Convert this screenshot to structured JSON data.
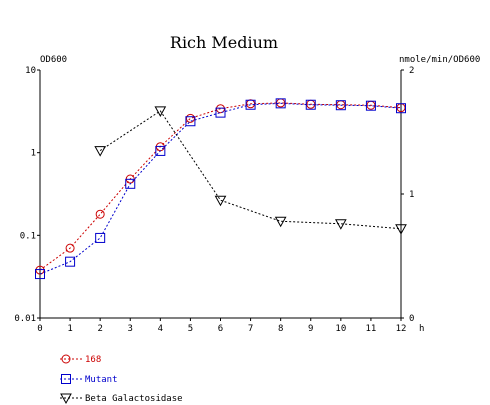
{
  "chart_data": {
    "type": "line",
    "title": "Rich Medium",
    "x": [
      0,
      1,
      2,
      3,
      4,
      5,
      6,
      7,
      8,
      9,
      10,
      11,
      12
    ],
    "x_ticks": [
      "0",
      "1",
      "2",
      "3",
      "4",
      "5",
      "6",
      "7",
      "8",
      "9",
      "10",
      "11",
      "12"
    ],
    "xlabel": "h",
    "xlim": [
      0,
      12
    ],
    "left_axis": {
      "label": "OD600",
      "scale": "log",
      "ylim": [
        0.01,
        10
      ],
      "ticks": [
        {
          "value": 10,
          "label": "10"
        },
        {
          "value": 1,
          "label": "1"
        },
        {
          "value": 0.1,
          "label": "0.1"
        },
        {
          "value": 0.01,
          "label": "0.01"
        }
      ]
    },
    "right_axis": {
      "label": "nmole/min/OD600",
      "scale": "linear",
      "ylim": [
        0,
        2
      ],
      "ticks": [
        {
          "value": 2,
          "label": "2"
        },
        {
          "value": 1,
          "label": "1"
        },
        {
          "value": 0,
          "label": "0"
        }
      ]
    },
    "series": [
      {
        "name": "168",
        "axis": "left",
        "marker": "circle",
        "color": "#cc0000",
        "x": [
          0,
          1,
          2,
          3,
          4,
          5,
          6,
          7,
          8,
          9,
          10,
          11,
          12
        ],
        "values": [
          0.038,
          0.07,
          0.18,
          0.48,
          1.18,
          2.6,
          3.4,
          3.9,
          4.0,
          3.85,
          3.8,
          3.75,
          3.5
        ]
      },
      {
        "name": "Mutant",
        "axis": "left",
        "marker": "square",
        "color": "#0000cc",
        "x": [
          0,
          1,
          2,
          3,
          4,
          5,
          6,
          7,
          8,
          9,
          10,
          11,
          12
        ],
        "values": [
          0.034,
          0.048,
          0.093,
          0.42,
          1.05,
          2.4,
          3.05,
          3.8,
          3.95,
          3.8,
          3.75,
          3.7,
          3.45
        ]
      },
      {
        "name": "Beta Galactosidase",
        "axis": "right",
        "marker": "triangle-down",
        "color": "#000000",
        "x": [
          2,
          4,
          6,
          8,
          10,
          12
        ],
        "values": [
          1.35,
          1.67,
          0.95,
          0.78,
          0.76,
          0.72
        ]
      }
    ],
    "grid": false,
    "legend_position": "bottom-left"
  }
}
